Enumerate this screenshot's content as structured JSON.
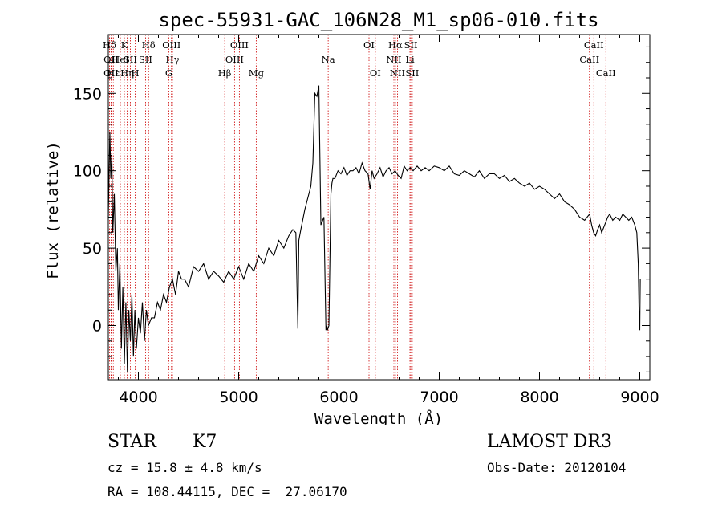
{
  "chart_data": {
    "type": "line",
    "title": "spec-55931-GAC_106N28_M1_sp06-010.fits",
    "xlabel": "Wavelength (Å)",
    "ylabel": "Flux (relative)",
    "xlim": [
      3700,
      9100
    ],
    "ylim": [
      -35,
      188
    ],
    "xticks": [
      4000,
      5000,
      6000,
      7000,
      8000,
      9000
    ],
    "yticks": [
      0,
      50,
      100,
      150
    ],
    "grid": false,
    "line_color": "#000000",
    "marker_color": "#cc0000",
    "spectrum": {
      "name": "flux",
      "x": [
        3700,
        3715,
        3725,
        3735,
        3745,
        3760,
        3775,
        3790,
        3800,
        3815,
        3830,
        3845,
        3860,
        3875,
        3890,
        3905,
        3920,
        3935,
        3950,
        3965,
        3980,
        4000,
        4020,
        4040,
        4060,
        4080,
        4100,
        4130,
        4160,
        4190,
        4220,
        4250,
        4280,
        4310,
        4340,
        4370,
        4400,
        4430,
        4460,
        4500,
        4550,
        4600,
        4650,
        4700,
        4750,
        4800,
        4850,
        4900,
        4950,
        5000,
        5050,
        5100,
        5150,
        5200,
        5250,
        5300,
        5350,
        5400,
        5450,
        5500,
        5540,
        5570,
        5590,
        5600,
        5620,
        5660,
        5700,
        5720,
        5740,
        5760,
        5780,
        5800,
        5820,
        5850,
        5870,
        5880,
        5885,
        5900,
        5920,
        5930,
        5940,
        5960,
        5990,
        6020,
        6050,
        6080,
        6110,
        6140,
        6170,
        6200,
        6230,
        6260,
        6290,
        6310,
        6330,
        6350,
        6380,
        6410,
        6440,
        6470,
        6500,
        6530,
        6560,
        6590,
        6620,
        6650,
        6680,
        6710,
        6740,
        6780,
        6820,
        6860,
        6900,
        6950,
        7000,
        7050,
        7100,
        7150,
        7200,
        7250,
        7300,
        7350,
        7400,
        7450,
        7500,
        7550,
        7600,
        7650,
        7700,
        7750,
        7800,
        7850,
        7900,
        7950,
        8000,
        8050,
        8100,
        8150,
        8200,
        8250,
        8300,
        8350,
        8400,
        8450,
        8500,
        8520,
        8540,
        8560,
        8580,
        8600,
        8620,
        8650,
        8680,
        8700,
        8730,
        8760,
        8800,
        8830,
        8860,
        8890,
        8920,
        8950,
        8970,
        8985,
        8995,
        9000,
        9005
      ],
      "y": [
        70,
        125,
        95,
        110,
        60,
        85,
        35,
        50,
        10,
        40,
        -15,
        25,
        -25,
        15,
        -30,
        10,
        -10,
        20,
        -20,
        10,
        -15,
        5,
        -5,
        15,
        -10,
        10,
        0,
        5,
        5,
        15,
        10,
        20,
        15,
        25,
        30,
        20,
        35,
        30,
        30,
        25,
        38,
        35,
        40,
        30,
        35,
        32,
        28,
        35,
        30,
        38,
        30,
        40,
        35,
        45,
        40,
        50,
        45,
        55,
        50,
        58,
        62,
        60,
        -2,
        55,
        62,
        75,
        85,
        90,
        105,
        150,
        148,
        155,
        65,
        70,
        -3,
        0,
        -3,
        0,
        85,
        92,
        95,
        95,
        100,
        98,
        102,
        97,
        100,
        100,
        102,
        98,
        105,
        100,
        98,
        88,
        100,
        95,
        98,
        102,
        96,
        100,
        102,
        98,
        100,
        97,
        95,
        103,
        100,
        102,
        100,
        103,
        100,
        102,
        100,
        103,
        102,
        100,
        103,
        98,
        97,
        100,
        98,
        96,
        100,
        95,
        98,
        98,
        95,
        97,
        93,
        95,
        92,
        90,
        92,
        88,
        90,
        88,
        85,
        82,
        85,
        80,
        78,
        75,
        70,
        68,
        72,
        65,
        60,
        58,
        62,
        65,
        60,
        65,
        70,
        72,
        68,
        70,
        68,
        72,
        70,
        68,
        70,
        65,
        60,
        40,
        0,
        -3,
        30
      ]
    },
    "line_markers": [
      {
        "label": "Hδ",
        "wavelength": 3712,
        "row": 1
      },
      {
        "label": "OII",
        "wavelength": 3727,
        "row": 2
      },
      {
        "label": "OII",
        "wavelength": 3727,
        "row": 3
      },
      {
        "label": "Hε",
        "wavelength": 3750,
        "row": 3
      },
      {
        "label": "HeI",
        "wavelength": 3820,
        "row": 2
      },
      {
        "label": "K",
        "wavelength": 3860,
        "row": 1
      },
      {
        "label": "Hη",
        "wavelength": 3889,
        "row": 3
      },
      {
        "label": "SII",
        "wavelength": 3920,
        "row": 2
      },
      {
        "label": "H",
        "wavelength": 3968,
        "row": 3
      },
      {
        "label": "Hδ",
        "wavelength": 4102,
        "row": 1
      },
      {
        "label": "SII",
        "wavelength": 4072,
        "row": 2
      },
      {
        "label": "OIII",
        "wavelength": 4330,
        "row": 1
      },
      {
        "label": "Hγ",
        "wavelength": 4340,
        "row": 2
      },
      {
        "label": "G",
        "wavelength": 4304,
        "row": 3
      },
      {
        "label": "Hβ",
        "wavelength": 4861,
        "row": 3
      },
      {
        "label": "OIII",
        "wavelength": 5007,
        "row": 1
      },
      {
        "label": "OIII",
        "wavelength": 4959,
        "row": 2
      },
      {
        "label": "Mg",
        "wavelength": 5175,
        "row": 3
      },
      {
        "label": "Na",
        "wavelength": 5893,
        "row": 2
      },
      {
        "label": "OI",
        "wavelength": 6300,
        "row": 1
      },
      {
        "label": "OI",
        "wavelength": 6363,
        "row": 3
      },
      {
        "label": "Hα",
        "wavelength": 6563,
        "row": 1
      },
      {
        "label": "NII",
        "wavelength": 6548,
        "row": 2
      },
      {
        "label": "NII",
        "wavelength": 6584,
        "row": 3
      },
      {
        "label": "SII",
        "wavelength": 6717,
        "row": 1
      },
      {
        "label": "Li",
        "wavelength": 6708,
        "row": 2
      },
      {
        "label": "SII",
        "wavelength": 6731,
        "row": 3
      },
      {
        "label": "CaII",
        "wavelength": 8542,
        "row": 1
      },
      {
        "label": "CaII",
        "wavelength": 8498,
        "row": 2
      },
      {
        "label": "CaII",
        "wavelength": 8662,
        "row": 3
      }
    ]
  },
  "info": {
    "class": "STAR",
    "subclass": "K7",
    "survey": "LAMOST DR3",
    "redshift": "cz = 15.8 ± 4.8 km/s",
    "obs_date": "Obs-Date: 20120104",
    "coords": "RA = 108.44115, DEC =  27.06170"
  }
}
